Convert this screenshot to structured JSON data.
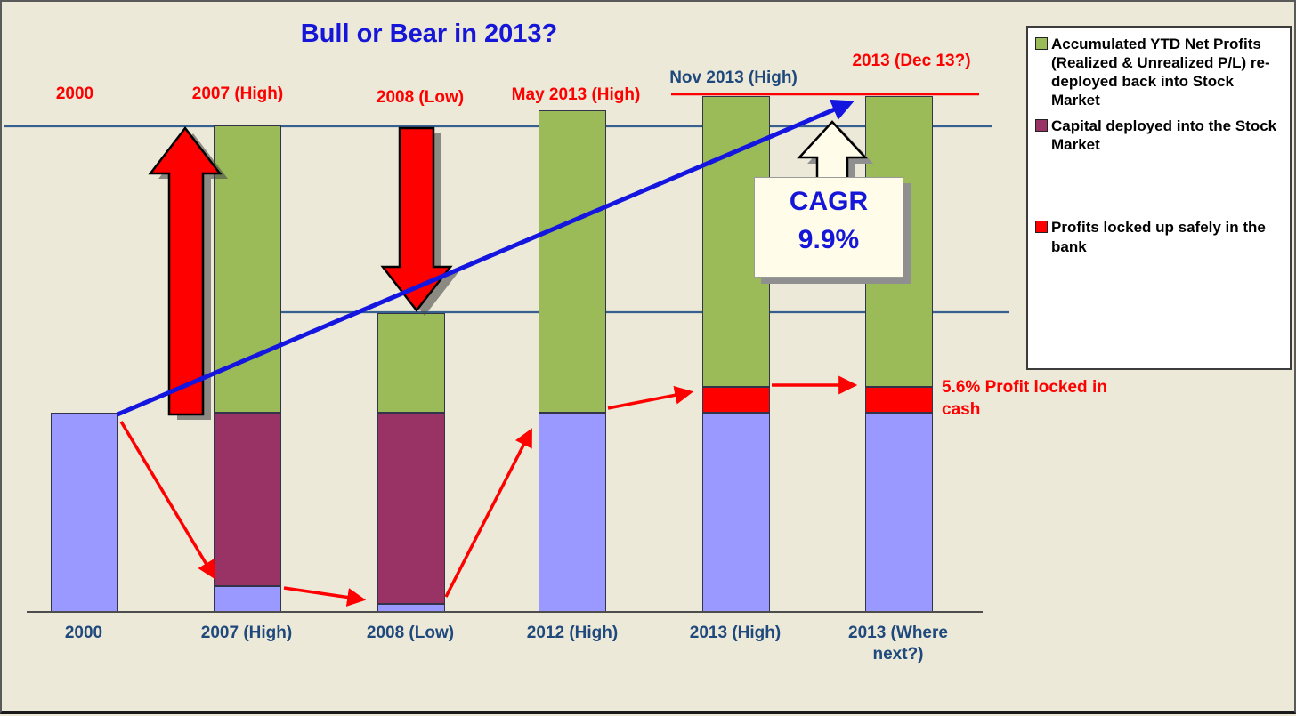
{
  "page": {
    "background": "#ECE9D8"
  },
  "title": {
    "text": "Bull or Bear in 2013?",
    "color": "#1616D8"
  },
  "top_labels": [
    {
      "text": "2000",
      "color": "red"
    },
    {
      "text": "2007 (High)",
      "color": "red"
    },
    {
      "text": "2008 (Low)",
      "color": "red"
    },
    {
      "text": "May 2013 (High)",
      "color": "red"
    },
    {
      "text": "Nov 2013 (High)",
      "color": "navy"
    },
    {
      "text": "2013 (Dec 13?)",
      "color": "red"
    }
  ],
  "x_axis": {
    "labels": [
      "2000",
      "2007 (High)",
      "2008 (Low)",
      "2012 (High)",
      "2013 (High)",
      "2013 (Where next?)"
    ]
  },
  "cagr_callout": {
    "line1": "CAGR",
    "line2": "9.9%"
  },
  "profit_note": {
    "text": "5.6% Profit locked in cash"
  },
  "legend": {
    "items": [
      {
        "label": "Accumulated YTD Net Profits (Realized & Unrealized P/L) re-deployed back into Stock Market",
        "color": "#9BBB59"
      },
      {
        "label": "Capital deployed into the Stock Market",
        "color": "#993366"
      },
      {
        "label": "Profits locked up safely in the bank",
        "color": "#FF0000"
      }
    ]
  },
  "chart_data": {
    "type": "bar",
    "stacked": true,
    "title": "Bull or Bear in 2013?",
    "unit": "relative index (2000 capital = 100); no value axis shown in chart",
    "categories": [
      "2000",
      "2007 (High)",
      "2008 (Low)",
      "2012 (High)",
      "2013 (High)",
      "2013 (Where next?)"
    ],
    "series_colors": {
      "cash": "#9999FF",
      "capital": "#993366",
      "profits": "#9BBB59",
      "locked": "#FF0000"
    },
    "bars": [
      {
        "category": "2000",
        "segments": [
          [
            "cash",
            100
          ]
        ]
      },
      {
        "category": "2007 (High)",
        "segments": [
          [
            "cash",
            13
          ],
          [
            "capital",
            87
          ],
          [
            "profits",
            144
          ]
        ]
      },
      {
        "category": "2008 (Low)",
        "segments": [
          [
            "cash",
            4
          ],
          [
            "capital",
            96
          ],
          [
            "profits",
            50
          ]
        ]
      },
      {
        "category": "2012 (High)",
        "segments": [
          [
            "cash",
            100
          ],
          [
            "profits",
            152
          ]
        ]
      },
      {
        "category": "2013 (High)",
        "segments": [
          [
            "cash",
            100
          ],
          [
            "locked",
            13
          ],
          [
            "profits",
            146
          ]
        ]
      },
      {
        "category": "2013 (Where next?)",
        "segments": [
          [
            "cash",
            100
          ],
          [
            "locked",
            13
          ],
          [
            "profits",
            146
          ]
        ]
      }
    ],
    "annotations": {
      "cagr": "CAGR 9.9%",
      "profit_note": "5.6% Profit locked in cash",
      "reference_lines": [
        {
          "level": "2007 high total (244)",
          "color": "#376091"
        },
        {
          "level": "2008 low total (150)",
          "color": "#376091"
        },
        {
          "level": "2013 tops (259)",
          "color": "#FF0000"
        }
      ],
      "trend_arrow": "blue arrow from 2000 bar top to Nov 2013 high",
      "big_arrows": [
        "red up arrow at 2007 rise",
        "red down arrow at 2008 fall",
        "cream up arrow above CAGR box"
      ]
    },
    "legend_position": "top-right",
    "grid": false
  }
}
